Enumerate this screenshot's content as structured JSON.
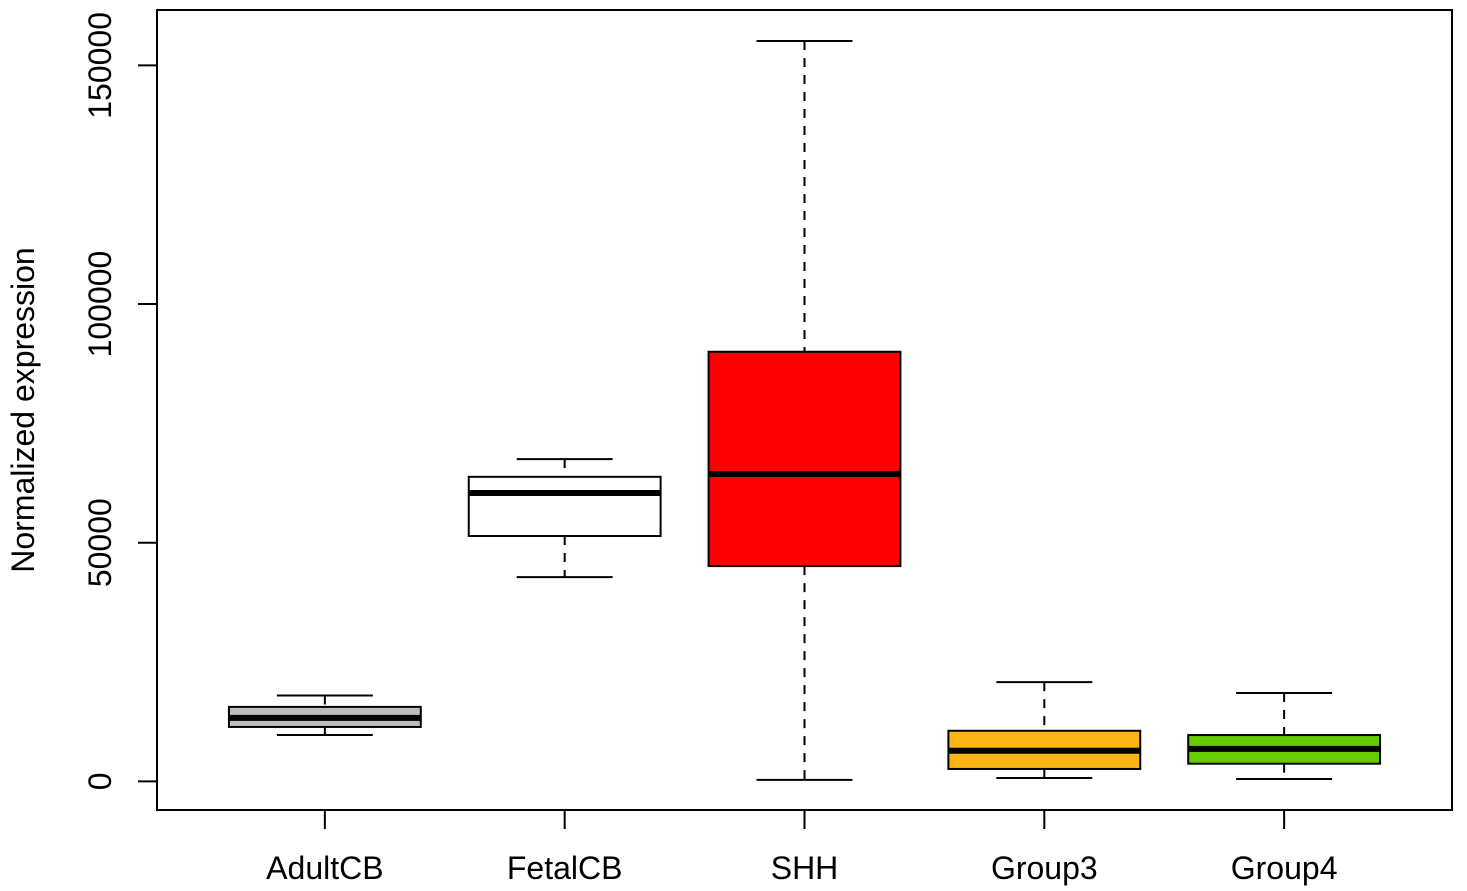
{
  "chart_data": {
    "type": "box",
    "ylabel": "Normalized expression",
    "categories": [
      "AdultCB",
      "FetalCB",
      "SHH",
      "Group3",
      "Group4"
    ],
    "ylim": [
      -6000,
      161600
    ],
    "yticks": [
      0,
      50000,
      100000,
      150000
    ],
    "grid": false,
    "boxes": [
      {
        "whisker_low": 9700,
        "q1": 11400,
        "median": 13300,
        "q3": 15600,
        "whisker_high": 18000,
        "color": "#BEBEBE"
      },
      {
        "whisker_low": 42800,
        "q1": 51400,
        "median": 60400,
        "q3": 63800,
        "whisker_high": 67500,
        "color": "#FFFFFF"
      },
      {
        "whisker_low": 300,
        "q1": 45100,
        "median": 64400,
        "q3": 90000,
        "whisker_high": 155100,
        "color": "#FF0000"
      },
      {
        "whisker_low": 700,
        "q1": 2600,
        "median": 6400,
        "q3": 10600,
        "whisker_high": 20800,
        "color": "#FCB514"
      },
      {
        "whisker_low": 500,
        "q1": 3700,
        "median": 6800,
        "q3": 9700,
        "whisker_high": 18500,
        "color": "#66CC00"
      }
    ]
  }
}
